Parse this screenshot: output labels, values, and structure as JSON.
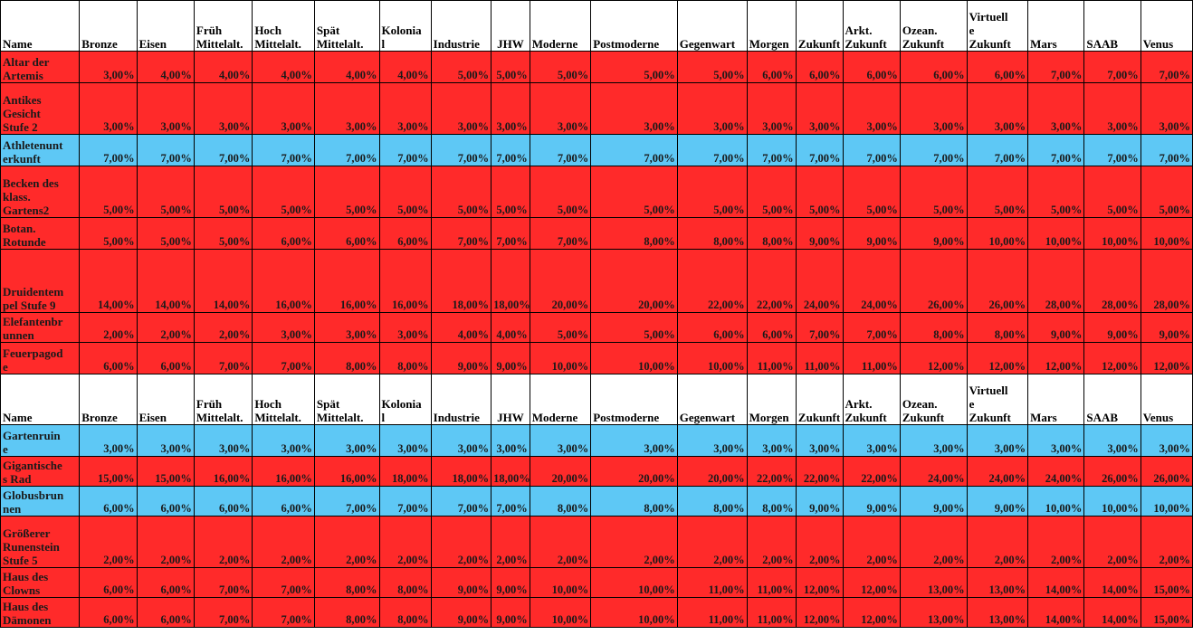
{
  "colors": {
    "red_row": "#ff2a2a",
    "blue_row": "#5ec8f5",
    "header_bg": "#ffffff"
  },
  "header": {
    "name": "Name",
    "columns": [
      "Bronze",
      "Eisen",
      "Früh\nMittelalt.",
      "Hoch\nMittelalt.",
      "Spät\nMittelalt.",
      "Kolonia\nl",
      "Industrie",
      "JHW",
      "Moderne",
      "Postmoderne",
      "Gegenwart",
      "Morgen",
      "Zukunft",
      "Arkt.\nZukunft",
      "Ozean.\nZukunft",
      "Virtuell\ne\nZukunft",
      "Mars",
      "SAAB",
      "Venus"
    ]
  },
  "rows": [
    {
      "name": "Altar der\nArtemis",
      "color": "red",
      "values": [
        "3,00%",
        "4,00%",
        "4,00%",
        "4,00%",
        "4,00%",
        "4,00%",
        "5,00%",
        "5,00%",
        "5,00%",
        "5,00%",
        "5,00%",
        "6,00%",
        "6,00%",
        "6,00%",
        "6,00%",
        "6,00%",
        "7,00%",
        "7,00%",
        "7,00%"
      ]
    },
    {
      "name": "Antikes\nGesicht\nStufe 2",
      "color": "red",
      "values": [
        "3,00%",
        "3,00%",
        "3,00%",
        "3,00%",
        "3,00%",
        "3,00%",
        "3,00%",
        "3,00%",
        "3,00%",
        "3,00%",
        "3,00%",
        "3,00%",
        "3,00%",
        "3,00%",
        "3,00%",
        "3,00%",
        "3,00%",
        "3,00%",
        "3,00%"
      ]
    },
    {
      "name": "Athletenunt\nerkunft",
      "color": "blue",
      "values": [
        "7,00%",
        "7,00%",
        "7,00%",
        "7,00%",
        "7,00%",
        "7,00%",
        "7,00%",
        "7,00%",
        "7,00%",
        "7,00%",
        "7,00%",
        "7,00%",
        "7,00%",
        "7,00%",
        "7,00%",
        "7,00%",
        "7,00%",
        "7,00%",
        "7,00%"
      ]
    },
    {
      "name": "Becken des\nklass.\nGartens2",
      "color": "red",
      "values": [
        "5,00%",
        "5,00%",
        "5,00%",
        "5,00%",
        "5,00%",
        "5,00%",
        "5,00%",
        "5,00%",
        "5,00%",
        "5,00%",
        "5,00%",
        "5,00%",
        "5,00%",
        "5,00%",
        "5,00%",
        "5,00%",
        "5,00%",
        "5,00%",
        "5,00%"
      ]
    },
    {
      "name": "Botan.\nRotunde",
      "color": "red",
      "values": [
        "5,00%",
        "5,00%",
        "5,00%",
        "6,00%",
        "6,00%",
        "6,00%",
        "7,00%",
        "7,00%",
        "7,00%",
        "8,00%",
        "8,00%",
        "8,00%",
        "9,00%",
        "9,00%",
        "9,00%",
        "10,00%",
        "10,00%",
        "10,00%",
        "10,00%"
      ]
    },
    {
      "name": "Druidentem\npel Stufe 9",
      "color": "red",
      "values": [
        "14,00%",
        "14,00%",
        "14,00%",
        "16,00%",
        "16,00%",
        "16,00%",
        "18,00%",
        "18,00%",
        "20,00%",
        "20,00%",
        "22,00%",
        "22,00%",
        "24,00%",
        "24,00%",
        "26,00%",
        "26,00%",
        "28,00%",
        "28,00%",
        "28,00%"
      ]
    },
    {
      "name": "Elefantenbr\nunnen",
      "color": "red",
      "values": [
        "2,00%",
        "2,00%",
        "2,00%",
        "3,00%",
        "3,00%",
        "3,00%",
        "4,00%",
        "4,00%",
        "5,00%",
        "5,00%",
        "6,00%",
        "6,00%",
        "7,00%",
        "7,00%",
        "8,00%",
        "8,00%",
        "9,00%",
        "9,00%",
        "9,00%"
      ]
    },
    {
      "name": "Feuerpagod\ne",
      "color": "red",
      "values": [
        "6,00%",
        "6,00%",
        "7,00%",
        "7,00%",
        "8,00%",
        "8,00%",
        "9,00%",
        "9,00%",
        "10,00%",
        "10,00%",
        "10,00%",
        "11,00%",
        "11,00%",
        "11,00%",
        "12,00%",
        "12,00%",
        "12,00%",
        "12,00%",
        "12,00%"
      ]
    },
    {
      "header": true
    },
    {
      "name": "Gartenruin\ne",
      "color": "blue",
      "values": [
        "3,00%",
        "3,00%",
        "3,00%",
        "3,00%",
        "3,00%",
        "3,00%",
        "3,00%",
        "3,00%",
        "3,00%",
        "3,00%",
        "3,00%",
        "3,00%",
        "3,00%",
        "3,00%",
        "3,00%",
        "3,00%",
        "3,00%",
        "3,00%",
        "3,00%"
      ]
    },
    {
      "name": "Gigantische\ns Rad",
      "color": "red",
      "values": [
        "15,00%",
        "15,00%",
        "16,00%",
        "16,00%",
        "16,00%",
        "18,00%",
        "18,00%",
        "18,00%",
        "20,00%",
        "20,00%",
        "20,00%",
        "22,00%",
        "22,00%",
        "22,00%",
        "24,00%",
        "24,00%",
        "24,00%",
        "26,00%",
        "26,00%"
      ]
    },
    {
      "name": "Globusbrun\nnen",
      "color": "blue",
      "values": [
        "6,00%",
        "6,00%",
        "6,00%",
        "6,00%",
        "7,00%",
        "7,00%",
        "7,00%",
        "7,00%",
        "8,00%",
        "8,00%",
        "8,00%",
        "8,00%",
        "9,00%",
        "9,00%",
        "9,00%",
        "9,00%",
        "10,00%",
        "10,00%",
        "10,00%"
      ]
    },
    {
      "name": "Größerer\nRunenstein\nStufe 5",
      "color": "red",
      "values": [
        "2,00%",
        "2,00%",
        "2,00%",
        "2,00%",
        "2,00%",
        "2,00%",
        "2,00%",
        "2,00%",
        "2,00%",
        "2,00%",
        "2,00%",
        "2,00%",
        "2,00%",
        "2,00%",
        "2,00%",
        "2,00%",
        "2,00%",
        "2,00%",
        "2,00%"
      ]
    },
    {
      "name": "Haus des\nClowns",
      "color": "red",
      "values": [
        "6,00%",
        "6,00%",
        "7,00%",
        "7,00%",
        "8,00%",
        "8,00%",
        "9,00%",
        "9,00%",
        "10,00%",
        "10,00%",
        "11,00%",
        "11,00%",
        "12,00%",
        "12,00%",
        "13,00%",
        "13,00%",
        "14,00%",
        "14,00%",
        "15,00%"
      ]
    },
    {
      "name": "Haus des\nDämonen",
      "color": "red",
      "values": [
        "6,00%",
        "6,00%",
        "7,00%",
        "7,00%",
        "8,00%",
        "8,00%",
        "9,00%",
        "9,00%",
        "10,00%",
        "10,00%",
        "11,00%",
        "11,00%",
        "12,00%",
        "12,00%",
        "13,00%",
        "13,00%",
        "14,00%",
        "14,00%",
        "15,00%"
      ]
    }
  ]
}
